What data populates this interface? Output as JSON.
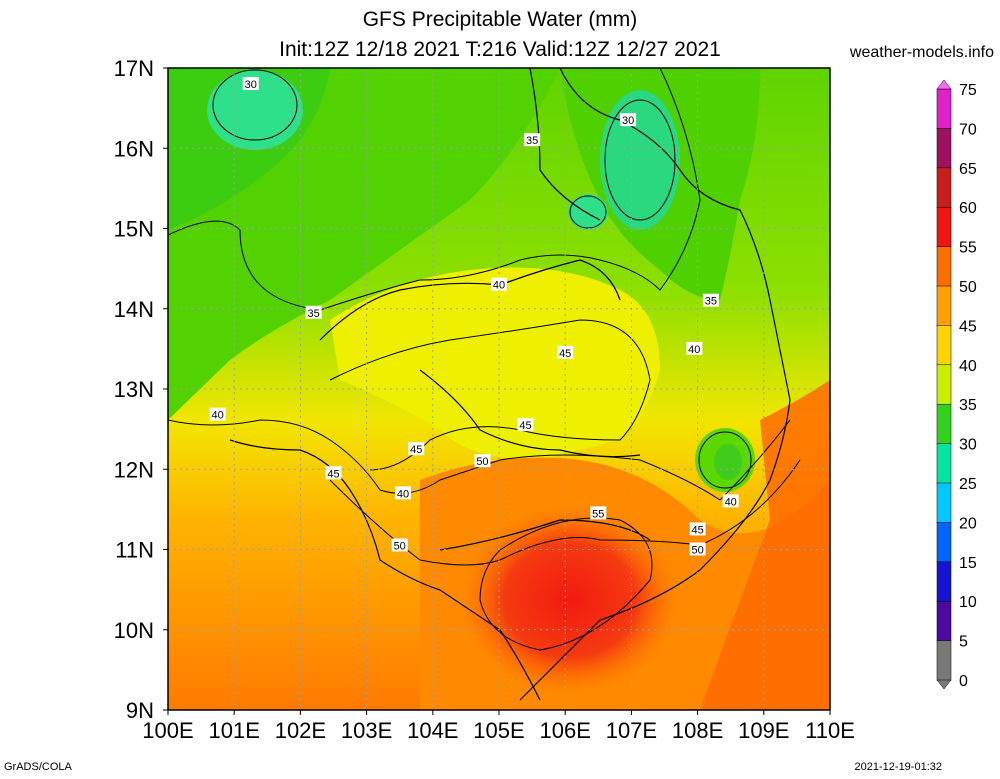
{
  "title": {
    "line1": "GFS Precipitable Water (mm)",
    "line2": "Init:12Z 12/18 2021 T:216 Valid:12Z 12/27 2021"
  },
  "site": "weather-models.info",
  "footer": {
    "left": "GrADS/COLA",
    "right": "2021-12-19-01:32"
  },
  "map": {
    "lon_ticks": [
      "100E",
      "101E",
      "102E",
      "103E",
      "104E",
      "105E",
      "106E",
      "107E",
      "108E",
      "109E",
      "110E"
    ],
    "lat_ticks": [
      "17N",
      "16N",
      "15N",
      "14N",
      "13N",
      "12N",
      "11N",
      "10N",
      "9N"
    ],
    "lon_range": [
      100,
      110
    ],
    "lat_range": [
      9,
      17
    ],
    "contour_labels": [
      {
        "text": "30",
        "lon": 101.25,
        "lat": 16.8
      },
      {
        "text": "35",
        "lon": 105.5,
        "lat": 16.1
      },
      {
        "text": "30",
        "lon": 106.95,
        "lat": 16.35
      },
      {
        "text": "40",
        "lon": 105.0,
        "lat": 14.3
      },
      {
        "text": "35",
        "lon": 102.2,
        "lat": 13.95
      },
      {
        "text": "45",
        "lon": 106.0,
        "lat": 13.45
      },
      {
        "text": "35",
        "lon": 108.2,
        "lat": 14.1
      },
      {
        "text": "40",
        "lon": 107.95,
        "lat": 13.5
      },
      {
        "text": "40",
        "lon": 100.75,
        "lat": 12.68
      },
      {
        "text": "45",
        "lon": 105.4,
        "lat": 12.55
      },
      {
        "text": "45",
        "lon": 103.75,
        "lat": 12.25
      },
      {
        "text": "50",
        "lon": 104.75,
        "lat": 12.1
      },
      {
        "text": "45",
        "lon": 102.5,
        "lat": 11.95
      },
      {
        "text": "40",
        "lon": 103.55,
        "lat": 11.7
      },
      {
        "text": "55",
        "lon": 106.5,
        "lat": 11.45
      },
      {
        "text": "40",
        "lon": 108.5,
        "lat": 11.6
      },
      {
        "text": "45",
        "lon": 108.0,
        "lat": 11.25
      },
      {
        "text": "50",
        "lon": 108.0,
        "lat": 11.0
      },
      {
        "text": "50",
        "lon": 103.5,
        "lat": 11.05
      }
    ]
  },
  "colorbar": {
    "levels": [
      "75",
      "70",
      "65",
      "60",
      "55",
      "50",
      "45",
      "40",
      "35",
      "30",
      "25",
      "20",
      "15",
      "10",
      "5",
      "0"
    ],
    "colors": [
      "#ff66ff",
      "#e020c8",
      "#a01060",
      "#c81e1e",
      "#f01414",
      "#fa6e00",
      "#ffa000",
      "#ffd200",
      "#c8f000",
      "#32d21e",
      "#00e6a0",
      "#00c8ff",
      "#0064ff",
      "#1414d2",
      "#4b0aa0",
      "#787878"
    ]
  }
}
